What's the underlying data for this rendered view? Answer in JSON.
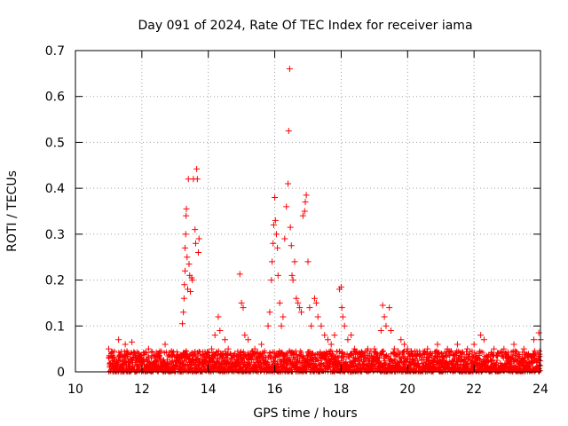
{
  "chart_data": {
    "type": "scatter",
    "title": "Day 091 of 2024, Rate Of TEC Index for receiver iama",
    "xlabel": "GPS time / hours",
    "ylabel": "ROTI / TECUs",
    "xlim": [
      10,
      24
    ],
    "ylim": [
      0,
      0.7
    ],
    "x_ticks": [
      10,
      12,
      14,
      16,
      18,
      20,
      22,
      24
    ],
    "x_tick_labels": [
      "10",
      "12",
      "14",
      "16",
      "18",
      "20",
      "22",
      "24"
    ],
    "y_ticks": [
      0,
      0.1,
      0.2,
      0.3,
      0.4,
      0.5,
      0.6,
      0.7
    ],
    "y_tick_labels": [
      "0",
      "0.1",
      "0.2",
      "0.3",
      "0.4",
      "0.5",
      "0.6",
      "0.7"
    ],
    "grid": true,
    "marker": "plus",
    "color": "#ff0000",
    "baseline": {
      "x_start": 11.0,
      "x_end": 24.0,
      "typical_max": 0.04,
      "note": "dense continuous band of points between 0 and ~0.05 across the observed time range"
    },
    "series": [
      {
        "name": "ROTI",
        "points": [
          [
            11.0,
            0.05
          ],
          [
            11.1,
            0.03
          ],
          [
            11.3,
            0.07
          ],
          [
            11.5,
            0.06
          ],
          [
            11.7,
            0.065
          ],
          [
            11.9,
            0.04
          ],
          [
            12.2,
            0.05
          ],
          [
            12.5,
            0.04
          ],
          [
            12.7,
            0.06
          ],
          [
            12.9,
            0.035
          ],
          [
            13.1,
            0.03
          ],
          [
            13.22,
            0.105
          ],
          [
            13.25,
            0.13
          ],
          [
            13.27,
            0.16
          ],
          [
            13.28,
            0.19
          ],
          [
            13.3,
            0.22
          ],
          [
            13.3,
            0.27
          ],
          [
            13.32,
            0.3
          ],
          [
            13.33,
            0.34
          ],
          [
            13.34,
            0.355
          ],
          [
            13.36,
            0.25
          ],
          [
            13.38,
            0.18
          ],
          [
            13.4,
            0.42
          ],
          [
            13.42,
            0.235
          ],
          [
            13.44,
            0.21
          ],
          [
            13.46,
            0.175
          ],
          [
            13.5,
            0.205
          ],
          [
            13.52,
            0.2
          ],
          [
            13.55,
            0.42
          ],
          [
            13.6,
            0.31
          ],
          [
            13.62,
            0.28
          ],
          [
            13.65,
            0.442
          ],
          [
            13.67,
            0.42
          ],
          [
            13.7,
            0.26
          ],
          [
            13.72,
            0.29
          ],
          [
            13.9,
            0.04
          ],
          [
            14.1,
            0.05
          ],
          [
            14.2,
            0.08
          ],
          [
            14.3,
            0.12
          ],
          [
            14.35,
            0.09
          ],
          [
            14.5,
            0.07
          ],
          [
            14.6,
            0.05
          ],
          [
            14.8,
            0.04
          ],
          [
            14.95,
            0.213
          ],
          [
            15.0,
            0.15
          ],
          [
            15.05,
            0.14
          ],
          [
            15.1,
            0.08
          ],
          [
            15.2,
            0.07
          ],
          [
            15.4,
            0.05
          ],
          [
            15.6,
            0.06
          ],
          [
            15.8,
            0.1
          ],
          [
            15.85,
            0.13
          ],
          [
            15.9,
            0.2
          ],
          [
            15.92,
            0.24
          ],
          [
            15.95,
            0.28
          ],
          [
            15.97,
            0.32
          ],
          [
            16.0,
            0.38
          ],
          [
            16.02,
            0.33
          ],
          [
            16.05,
            0.3
          ],
          [
            16.08,
            0.27
          ],
          [
            16.1,
            0.21
          ],
          [
            16.15,
            0.15
          ],
          [
            16.2,
            0.1
          ],
          [
            16.25,
            0.12
          ],
          [
            16.3,
            0.29
          ],
          [
            16.35,
            0.36
          ],
          [
            16.4,
            0.41
          ],
          [
            16.42,
            0.525
          ],
          [
            16.45,
            0.66
          ],
          [
            16.47,
            0.315
          ],
          [
            16.5,
            0.275
          ],
          [
            16.52,
            0.21
          ],
          [
            16.55,
            0.2
          ],
          [
            16.6,
            0.24
          ],
          [
            16.65,
            0.16
          ],
          [
            16.7,
            0.15
          ],
          [
            16.75,
            0.14
          ],
          [
            16.8,
            0.13
          ],
          [
            16.85,
            0.34
          ],
          [
            16.9,
            0.35
          ],
          [
            16.92,
            0.37
          ],
          [
            16.95,
            0.385
          ],
          [
            17.0,
            0.24
          ],
          [
            17.05,
            0.14
          ],
          [
            17.1,
            0.1
          ],
          [
            17.2,
            0.16
          ],
          [
            17.25,
            0.15
          ],
          [
            17.3,
            0.12
          ],
          [
            17.4,
            0.1
          ],
          [
            17.5,
            0.08
          ],
          [
            17.6,
            0.07
          ],
          [
            17.7,
            0.06
          ],
          [
            17.8,
            0.08
          ],
          [
            17.95,
            0.18
          ],
          [
            18.0,
            0.185
          ],
          [
            18.02,
            0.14
          ],
          [
            18.05,
            0.12
          ],
          [
            18.1,
            0.1
          ],
          [
            18.2,
            0.07
          ],
          [
            18.3,
            0.08
          ],
          [
            18.4,
            0.05
          ],
          [
            18.6,
            0.04
          ],
          [
            18.8,
            0.05
          ],
          [
            19.0,
            0.05
          ],
          [
            19.2,
            0.09
          ],
          [
            19.25,
            0.145
          ],
          [
            19.3,
            0.12
          ],
          [
            19.35,
            0.1
          ],
          [
            19.45,
            0.14
          ],
          [
            19.5,
            0.09
          ],
          [
            19.6,
            0.05
          ],
          [
            19.8,
            0.07
          ],
          [
            19.9,
            0.06
          ],
          [
            20.0,
            0.05
          ],
          [
            20.3,
            0.04
          ],
          [
            20.6,
            0.05
          ],
          [
            20.9,
            0.06
          ],
          [
            21.2,
            0.05
          ],
          [
            21.5,
            0.06
          ],
          [
            21.8,
            0.05
          ],
          [
            22.0,
            0.06
          ],
          [
            22.2,
            0.08
          ],
          [
            22.3,
            0.07
          ],
          [
            22.6,
            0.05
          ],
          [
            22.9,
            0.05
          ],
          [
            23.2,
            0.06
          ],
          [
            23.5,
            0.05
          ],
          [
            23.8,
            0.07
          ],
          [
            23.95,
            0.085
          ],
          [
            24.0,
            0.07
          ]
        ]
      }
    ]
  }
}
